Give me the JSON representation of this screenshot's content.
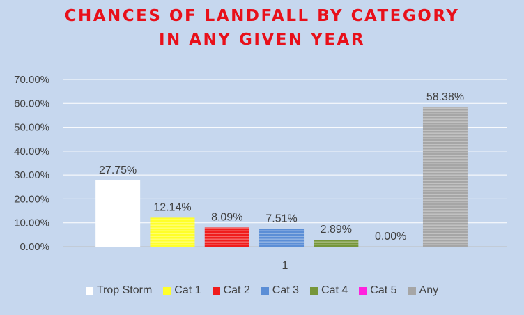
{
  "chart_data": {
    "type": "bar",
    "title_lines": [
      "CHANCES OF LANDFALL BY CATEGORY",
      "IN ANY GIVEN YEAR"
    ],
    "categories": [
      "1"
    ],
    "series": [
      {
        "name": "Trop Storm",
        "values": [
          27.75
        ],
        "label": "27.75%",
        "color": "#ffffff",
        "pattern": "none"
      },
      {
        "name": "Cat 1",
        "values": [
          12.14
        ],
        "label": "12.14%",
        "color": "#ffff2a",
        "pattern": "horizontal-stripes"
      },
      {
        "name": "Cat 2",
        "values": [
          8.09
        ],
        "label": "8.09%",
        "color": "#f01c1c",
        "pattern": "horizontal-stripes"
      },
      {
        "name": "Cat 3",
        "values": [
          7.51
        ],
        "label": "7.51%",
        "color": "#5b8ed6",
        "pattern": "horizontal-stripes"
      },
      {
        "name": "Cat 4",
        "values": [
          2.89
        ],
        "label": "2.89%",
        "color": "#76963a",
        "pattern": "horizontal-stripes"
      },
      {
        "name": "Cat 5",
        "values": [
          0.0
        ],
        "label": "0.00%",
        "color": "#ff22dd",
        "pattern": "horizontal-stripes"
      },
      {
        "name": "Any",
        "values": [
          58.38
        ],
        "label": "58.38%",
        "color": "#a6a6a6",
        "pattern": "horizontal-stripes"
      }
    ],
    "yticks": [
      "0.00%",
      "10.00%",
      "20.00%",
      "30.00%",
      "40.00%",
      "50.00%",
      "60.00%",
      "70.00%"
    ],
    "ylim": [
      0,
      70
    ],
    "grid": true,
    "legend_position": "bottom"
  }
}
